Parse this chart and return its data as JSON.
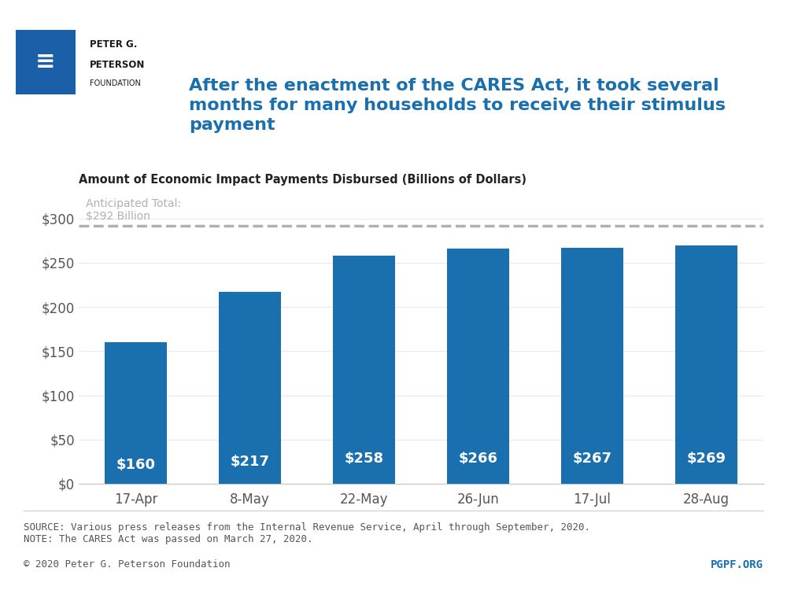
{
  "categories": [
    "17-Apr",
    "8-May",
    "22-May",
    "26-Jun",
    "17-Jul",
    "28-Aug"
  ],
  "values": [
    160,
    217,
    258,
    266,
    267,
    269
  ],
  "bar_color": "#1a6faf",
  "bar_label_color": "#ffffff",
  "bar_label_fontsize": 13,
  "anticipated_total": 292,
  "anticipated_label": "Anticipated Total:\n$292 Billion",
  "dashed_line_color": "#b0b0b0",
  "title": "After the enactment of the CARES Act, it took several\nmonths for many households to receive their stimulus\npayment",
  "title_color": "#1a6faf",
  "subtitle": "Amount of Economic Impact Payments Disbursed (Billions of Dollars)",
  "subtitle_color": "#222222",
  "ylim": [
    0,
    320
  ],
  "yticks": [
    0,
    50,
    100,
    150,
    200,
    250,
    300
  ],
  "ytick_labels": [
    "$0",
    "$50",
    "$100",
    "$150",
    "$200",
    "$250",
    "$300"
  ],
  "source_text": "SOURCE: Various press releases from the Internal Revenue Service, April through September, 2020.\nNOTE: The CARES Act was passed on March 27, 2020.",
  "copyright_text": "© 2020 Peter G. Peterson Foundation",
  "pgpf_text": "PGPF.ORG",
  "pgpf_color": "#1a6faf",
  "background_color": "#ffffff",
  "footer_text_color": "#555555",
  "footer_fontsize": 9,
  "axis_label_color": "#555555",
  "tick_fontsize": 12,
  "xtick_fontsize": 12
}
